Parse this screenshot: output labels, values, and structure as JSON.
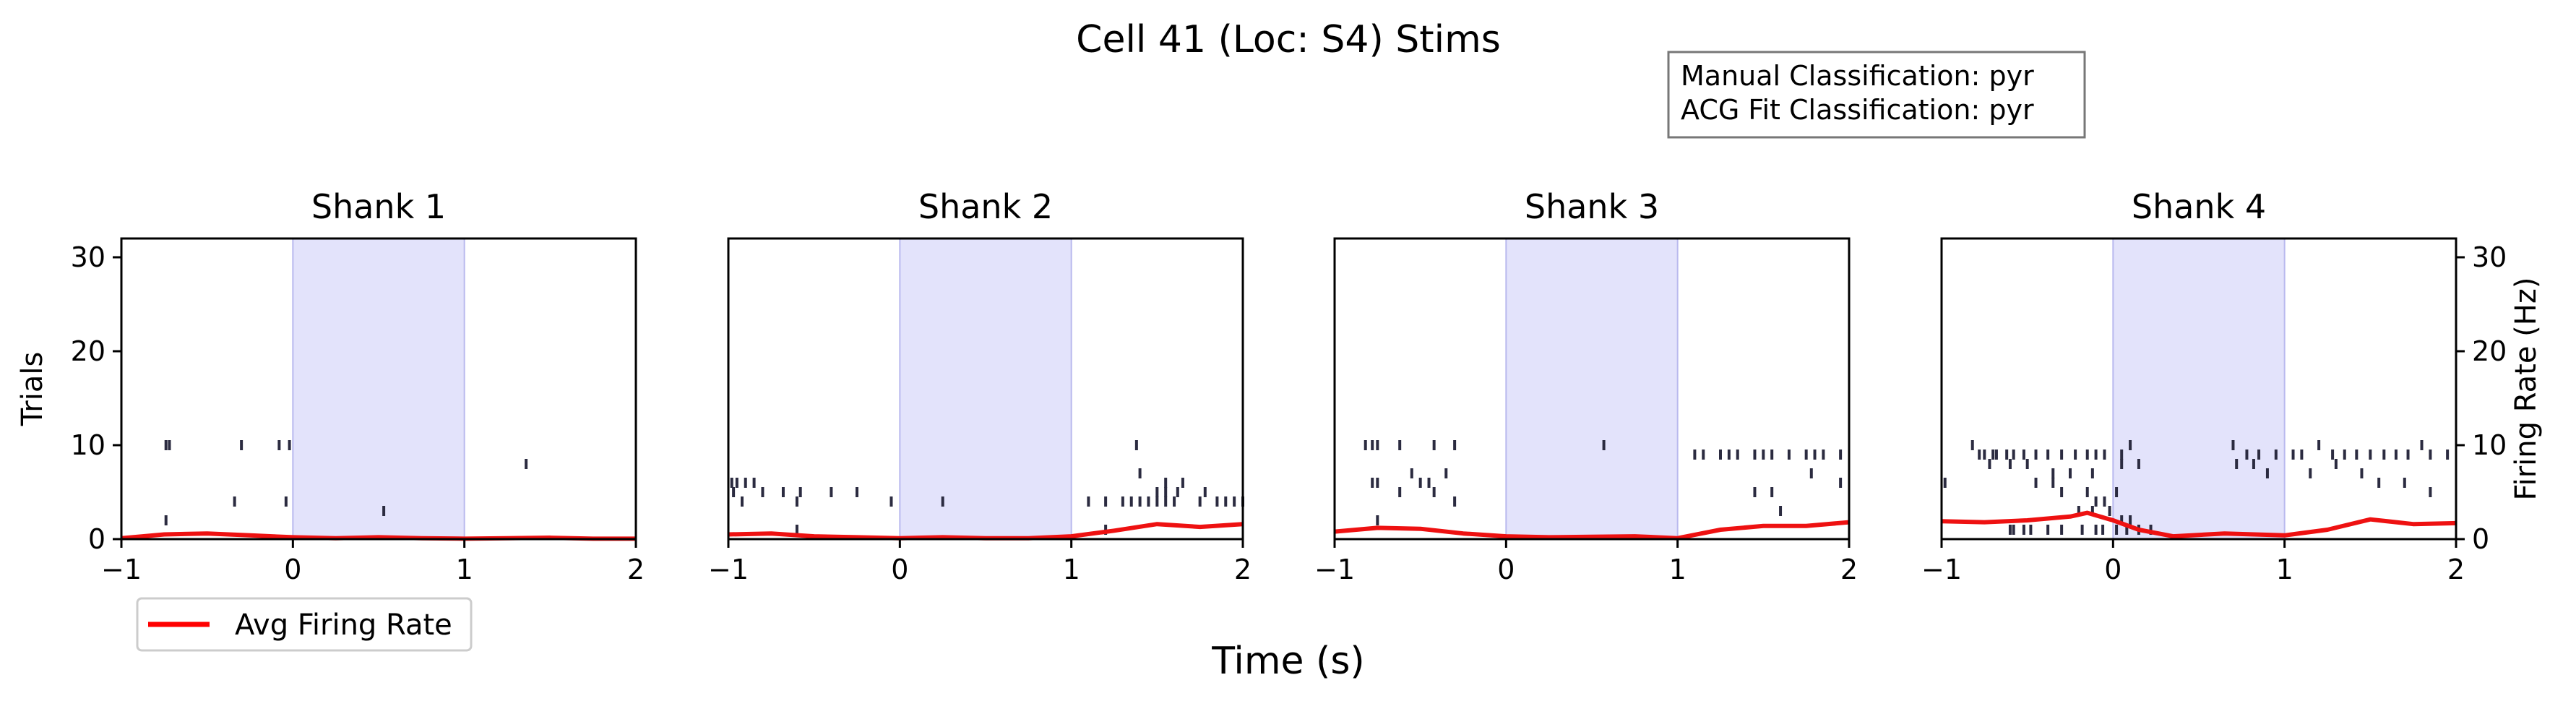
{
  "figure": {
    "title": "Cell 41 (Loc: S4) Stims",
    "xlabel": "Time (s)"
  },
  "info_box": {
    "line1": "Manual Classification: pyr",
    "line2": "ACG Fit Classification: pyr"
  },
  "legend": {
    "label": "Avg Firing Rate",
    "color": "#ff0000"
  },
  "colors": {
    "stim": "#e3e3fb",
    "stim_edge": "#b9b9ee",
    "spike": "#2b2b40",
    "rate": "#ee1111"
  },
  "chart_data": [
    {
      "type": "raster",
      "title": "Shank 1",
      "xlim": [
        -1,
        2
      ],
      "ylim": [
        0,
        32
      ],
      "xticks": [
        "−1",
        "0",
        "1",
        "2"
      ],
      "yticks": [
        "0",
        "10",
        "20",
        "30"
      ],
      "ylabel": "Trials",
      "stim_window": [
        0,
        1
      ],
      "spikes": [
        [
          -0.74,
          10
        ],
        [
          -0.72,
          10
        ],
        [
          -0.3,
          10
        ],
        [
          -0.08,
          10
        ],
        [
          -0.02,
          10
        ],
        [
          -0.34,
          4
        ],
        [
          -0.04,
          4
        ],
        [
          0.53,
          3
        ],
        [
          -0.74,
          2
        ],
        [
          1.36,
          8
        ]
      ],
      "rate": {
        "x": [
          -1,
          -0.75,
          -0.5,
          -0.25,
          0,
          0.25,
          0.5,
          0.75,
          1,
          1.25,
          1.5,
          1.75,
          2
        ],
        "y": [
          0.1,
          0.5,
          0.6,
          0.4,
          0.2,
          0.1,
          0.2,
          0.1,
          0.05,
          0.1,
          0.15,
          0.05,
          0.05
        ]
      }
    },
    {
      "type": "raster",
      "title": "Shank 2",
      "xlim": [
        -1,
        2
      ],
      "ylim": [
        0,
        32
      ],
      "xticks": [
        "−1",
        "0",
        "1",
        "2"
      ],
      "yticks": [],
      "stim_window": [
        0,
        1
      ],
      "spikes": [
        [
          -0.98,
          6
        ],
        [
          -0.95,
          6
        ],
        [
          -0.9,
          6
        ],
        [
          -0.85,
          6
        ],
        [
          -0.97,
          5
        ],
        [
          -0.8,
          5
        ],
        [
          -0.68,
          5
        ],
        [
          -0.58,
          5
        ],
        [
          -0.4,
          5
        ],
        [
          -0.25,
          5
        ],
        [
          -0.92,
          4
        ],
        [
          -0.6,
          4
        ],
        [
          -0.05,
          4
        ],
        [
          0.25,
          4
        ],
        [
          1.1,
          4
        ],
        [
          1.2,
          4
        ],
        [
          1.3,
          4
        ],
        [
          1.35,
          4
        ],
        [
          1.4,
          4
        ],
        [
          1.45,
          4
        ],
        [
          1.5,
          4
        ],
        [
          1.55,
          4
        ],
        [
          1.6,
          4
        ],
        [
          1.75,
          4
        ],
        [
          1.85,
          4
        ],
        [
          1.9,
          4
        ],
        [
          1.95,
          4
        ],
        [
          2.0,
          4
        ],
        [
          1.5,
          5
        ],
        [
          1.55,
          5
        ],
        [
          1.62,
          5
        ],
        [
          1.78,
          5
        ],
        [
          1.55,
          6
        ],
        [
          1.65,
          6
        ],
        [
          1.4,
          7
        ],
        [
          1.38,
          10
        ],
        [
          -0.6,
          1
        ],
        [
          1.2,
          1
        ]
      ],
      "rate": {
        "x": [
          -1,
          -0.75,
          -0.5,
          -0.25,
          0,
          0.25,
          0.5,
          0.75,
          1,
          1.25,
          1.5,
          1.75,
          2
        ],
        "y": [
          0.5,
          0.6,
          0.3,
          0.2,
          0.1,
          0.2,
          0.1,
          0.1,
          0.3,
          0.9,
          1.6,
          1.3,
          1.6
        ]
      }
    },
    {
      "type": "raster",
      "title": "Shank 3",
      "xlim": [
        -1,
        2
      ],
      "ylim": [
        0,
        32
      ],
      "xticks": [
        "−1",
        "0",
        "1",
        "2"
      ],
      "yticks": [],
      "stim_window": [
        0,
        1
      ],
      "spikes": [
        [
          -0.82,
          10
        ],
        [
          -0.78,
          10
        ],
        [
          -0.75,
          10
        ],
        [
          -0.62,
          10
        ],
        [
          -0.42,
          10
        ],
        [
          -0.3,
          10
        ],
        [
          0.57,
          10
        ],
        [
          1.1,
          9
        ],
        [
          1.15,
          9
        ],
        [
          1.25,
          9
        ],
        [
          1.3,
          9
        ],
        [
          1.35,
          9
        ],
        [
          1.45,
          9
        ],
        [
          1.5,
          9
        ],
        [
          1.55,
          9
        ],
        [
          1.65,
          9
        ],
        [
          1.75,
          9
        ],
        [
          1.8,
          9
        ],
        [
          1.85,
          9
        ],
        [
          1.95,
          9
        ],
        [
          -0.55,
          7
        ],
        [
          -0.35,
          7
        ],
        [
          -0.78,
          6
        ],
        [
          -0.75,
          6
        ],
        [
          -0.5,
          6
        ],
        [
          -0.45,
          6
        ],
        [
          -0.62,
          5
        ],
        [
          -0.42,
          5
        ],
        [
          -0.3,
          4
        ],
        [
          -0.75,
          2
        ],
        [
          1.45,
          5
        ],
        [
          1.55,
          5
        ],
        [
          1.78,
          7
        ],
        [
          1.95,
          6
        ],
        [
          1.6,
          3
        ]
      ],
      "rate": {
        "x": [
          -1,
          -0.75,
          -0.5,
          -0.25,
          0,
          0.25,
          0.5,
          0.75,
          1,
          1.25,
          1.5,
          1.75,
          2
        ],
        "y": [
          0.8,
          1.2,
          1.1,
          0.6,
          0.3,
          0.2,
          0.25,
          0.3,
          0.1,
          1.0,
          1.4,
          1.4,
          1.8
        ]
      }
    },
    {
      "type": "raster",
      "title": "Shank 4",
      "xlim": [
        -1,
        2
      ],
      "ylim": [
        0,
        32
      ],
      "xticks": [
        "−1",
        "0",
        "1",
        "2"
      ],
      "yticks": [
        "0",
        "10",
        "20",
        "30"
      ],
      "ylabel": "Firing Rate (Hz)",
      "stim_window": [
        0,
        1
      ],
      "spikes": [
        [
          -0.82,
          10
        ],
        [
          -0.78,
          9
        ],
        [
          -0.75,
          9
        ],
        [
          -0.7,
          9
        ],
        [
          -0.68,
          9
        ],
        [
          -0.62,
          9
        ],
        [
          -0.58,
          9
        ],
        [
          -0.52,
          9
        ],
        [
          -0.45,
          9
        ],
        [
          -0.38,
          9
        ],
        [
          -0.3,
          9
        ],
        [
          -0.22,
          9
        ],
        [
          -0.15,
          9
        ],
        [
          -0.1,
          9
        ],
        [
          -0.05,
          9
        ],
        [
          0.05,
          9
        ],
        [
          0.1,
          10
        ],
        [
          0.7,
          10
        ],
        [
          0.78,
          9
        ],
        [
          0.85,
          9
        ],
        [
          0.95,
          9
        ],
        [
          1.05,
          9
        ],
        [
          1.1,
          9
        ],
        [
          1.2,
          10
        ],
        [
          1.28,
          9
        ],
        [
          1.35,
          9
        ],
        [
          1.42,
          9
        ],
        [
          1.5,
          9
        ],
        [
          1.58,
          9
        ],
        [
          1.65,
          9
        ],
        [
          1.72,
          9
        ],
        [
          1.8,
          10
        ],
        [
          1.85,
          9
        ],
        [
          1.95,
          9
        ],
        [
          -0.72,
          8
        ],
        [
          -0.6,
          8
        ],
        [
          -0.5,
          8
        ],
        [
          -0.35,
          7
        ],
        [
          -0.25,
          7
        ],
        [
          -0.12,
          7
        ],
        [
          0.05,
          8
        ],
        [
          0.15,
          8
        ],
        [
          0.72,
          8
        ],
        [
          0.82,
          8
        ],
        [
          0.9,
          7
        ],
        [
          1.15,
          7
        ],
        [
          1.3,
          8
        ],
        [
          1.45,
          7
        ],
        [
          1.55,
          6
        ],
        [
          1.7,
          6
        ],
        [
          1.85,
          5
        ],
        [
          -0.45,
          6
        ],
        [
          -0.35,
          6
        ],
        [
          -0.3,
          5
        ],
        [
          -0.15,
          5
        ],
        [
          -0.1,
          4
        ],
        [
          -0.05,
          4
        ],
        [
          0.02,
          5
        ],
        [
          -0.2,
          3
        ],
        [
          -0.12,
          3
        ],
        [
          -0.02,
          3
        ],
        [
          0.05,
          2
        ],
        [
          0.1,
          2
        ],
        [
          -0.6,
          1
        ],
        [
          -0.58,
          1
        ],
        [
          -0.52,
          1
        ],
        [
          -0.48,
          1
        ],
        [
          -0.38,
          1
        ],
        [
          -0.3,
          1
        ],
        [
          -0.18,
          1
        ],
        [
          -0.1,
          1
        ],
        [
          -0.06,
          1
        ],
        [
          0.02,
          1
        ],
        [
          0.08,
          1
        ],
        [
          0.15,
          1
        ],
        [
          0.22,
          1
        ],
        [
          -0.98,
          6
        ]
      ],
      "rate": {
        "x": [
          -1,
          -0.75,
          -0.5,
          -0.25,
          -0.15,
          0,
          0.15,
          0.35,
          0.65,
          1,
          1.25,
          1.5,
          1.75,
          2
        ],
        "y": [
          1.9,
          1.8,
          2.0,
          2.4,
          2.8,
          2.0,
          1.0,
          0.3,
          0.6,
          0.4,
          1.0,
          2.1,
          1.6,
          1.7
        ]
      }
    }
  ]
}
